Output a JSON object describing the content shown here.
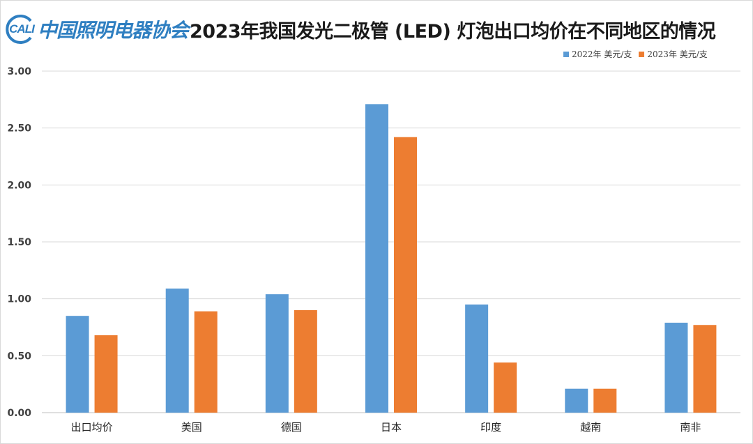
{
  "header": {
    "logo_text": "CALI",
    "org_name": "中国照明电器协会",
    "title": "2023年我国发光二极管 (LED) 灯泡出口均价在不同地区的情况"
  },
  "colors": {
    "series_2022": "#5b9bd5",
    "series_2023": "#ed7d31",
    "brand": "#2f7fc1"
  },
  "chart_data": {
    "type": "bar",
    "title": "2023年我国发光二极管 (LED) 灯泡出口均价在不同地区的情况",
    "xlabel": "",
    "ylabel": "",
    "categories": [
      "出口均价",
      "美国",
      "德国",
      "日本",
      "印度",
      "越南",
      "南非"
    ],
    "series": [
      {
        "name": "2022年 美元/支",
        "values": [
          0.85,
          1.09,
          1.04,
          2.71,
          0.95,
          0.21,
          0.79
        ]
      },
      {
        "name": "2023年 美元/支",
        "values": [
          0.68,
          0.89,
          0.9,
          2.42,
          0.44,
          0.21,
          0.77
        ]
      }
    ],
    "ylim": [
      0,
      3
    ],
    "yticks": [
      "0.00",
      "0.50",
      "1.00",
      "1.50",
      "2.00",
      "2.50",
      "3.00"
    ],
    "grid": true,
    "legend_position": "top-right"
  }
}
